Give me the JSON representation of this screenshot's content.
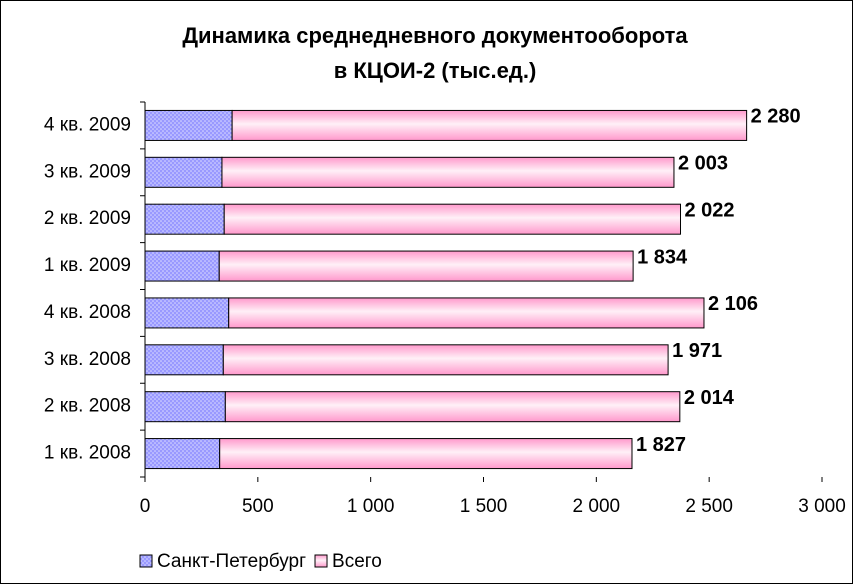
{
  "chart_data": {
    "type": "bar",
    "orientation": "horizontal",
    "stacked": true,
    "title": [
      "Динамика среднедневного документооборота",
      "в КЦОИ-2 (тыс.ед.)"
    ],
    "categories": [
      "4 кв. 2009",
      "3 кв. 2009",
      "2 кв. 2009",
      "1 кв. 2009",
      "4 кв. 2008",
      "3 кв. 2008",
      "2 кв. 2008",
      "1 кв. 2008"
    ],
    "series": [
      {
        "name": "Санкт-Петербург",
        "color": "#9999ff",
        "values": [
          386,
          341,
          351,
          329,
          371,
          347,
          356,
          331
        ]
      },
      {
        "name": "Всего",
        "color": "#ff99cc",
        "values": [
          2280,
          2003,
          2022,
          1834,
          2106,
          1971,
          2014,
          1827
        ],
        "value_labels": [
          "2 280",
          "2 003",
          "2 022",
          "1 834",
          "2 106",
          "1 971",
          "2 014",
          "1 827"
        ]
      }
    ],
    "xlim": [
      0,
      3000
    ],
    "xticks": [
      0,
      500,
      {
        "value": 1000,
        "label": "1 000"
      },
      {
        "value": 1500,
        "label": "1 500"
      },
      {
        "value": 2000,
        "label": "2 000"
      },
      {
        "value": 2500,
        "label": "2 500"
      },
      {
        "value": 3000,
        "label": "3 000"
      }
    ],
    "grid": false,
    "legend": "bottom-left"
  }
}
